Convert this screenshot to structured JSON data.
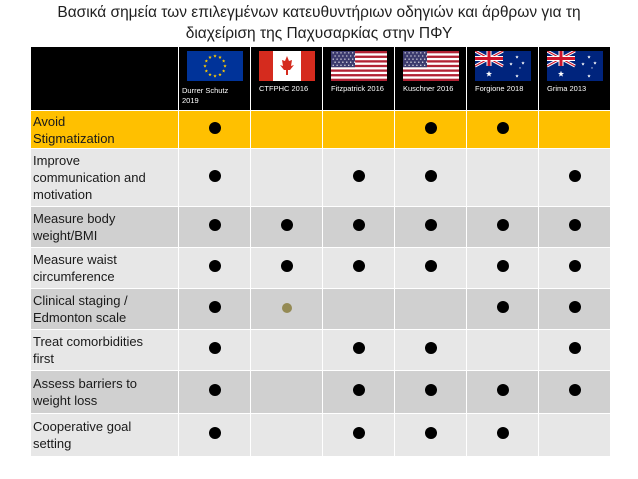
{
  "title": {
    "line1": "Βασικά σημεία των επιλεγμένων κατευθυντήριων οδηγιών και άρθρων για τη",
    "line2": "διαχείριση της Παχυσαρκίας στην ΠΦΥ"
  },
  "columns": [
    {
      "label_line1": "Durrer Schutz",
      "label_line2": "2019",
      "flag": "eu-flag-icon"
    },
    {
      "label_line1": "CTFPHC 2016",
      "label_line2": "",
      "flag": "canada-flag-icon"
    },
    {
      "label_line1": "Fitzpatrick 2016",
      "label_line2": "",
      "flag": "usa-flag-icon"
    },
    {
      "label_line1": "Kuschner 2016",
      "label_line2": "",
      "flag": "usa-flag-icon"
    },
    {
      "label_line1": "Forgione 2018",
      "label_line2": "",
      "flag": "australia-flag-icon"
    },
    {
      "label_line1": "Grima 2013",
      "label_line2": "",
      "flag": "australia-flag-icon"
    }
  ],
  "colors": {
    "highlight_row": "#ffc000",
    "dot": "#000000",
    "partial_dot": "#948a54"
  },
  "rows": [
    {
      "label_lines": [
        "Avoid",
        "Stigmatization"
      ],
      "marks": [
        "dot",
        "",
        "",
        "dot",
        "dot",
        ""
      ]
    },
    {
      "label_lines": [
        "Improve",
        "communication and",
        "motivation"
      ],
      "marks": [
        "dot",
        "",
        "dot",
        "dot",
        "",
        "dot"
      ]
    },
    {
      "label_lines": [
        "Measure body",
        "weight/BMI"
      ],
      "marks": [
        "dot",
        "dot",
        "dot",
        "dot",
        "dot",
        "dot"
      ]
    },
    {
      "label_lines": [
        "Measure waist",
        "circumference"
      ],
      "marks": [
        "dot",
        "dot",
        "dot",
        "dot",
        "dot",
        "dot"
      ]
    },
    {
      "label_lines": [
        "Clinical staging /",
        "Edmonton scale"
      ],
      "marks": [
        "dot",
        "partial",
        "",
        "",
        "dot",
        "dot"
      ]
    },
    {
      "label_lines": [
        "Treat comorbidities",
        "first"
      ],
      "marks": [
        "dot",
        "",
        "dot",
        "dot",
        "",
        "dot"
      ]
    },
    {
      "label_lines": [
        "Assess barriers to",
        "weight loss"
      ],
      "marks": [
        "dot",
        "",
        "dot",
        "dot",
        "dot",
        "dot"
      ]
    },
    {
      "label_lines": [
        "Cooperative goal",
        "setting"
      ],
      "marks": [
        "dot",
        "",
        "dot",
        "dot",
        "dot",
        ""
      ]
    }
  ]
}
